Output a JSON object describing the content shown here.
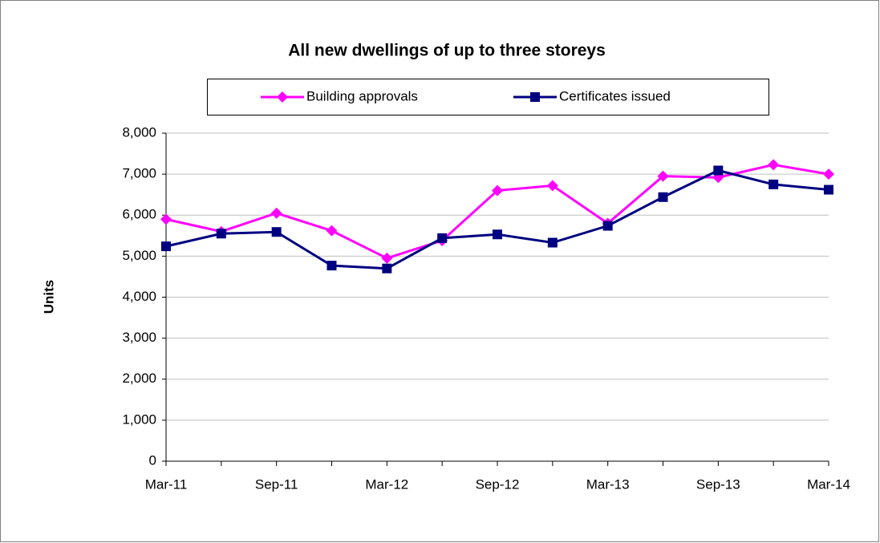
{
  "chart_data": {
    "type": "line",
    "title": "All new dwellings of up to three storeys",
    "ylabel": "Units",
    "categories": [
      "Mar-11",
      null,
      "Sep-11",
      null,
      "Mar-12",
      null,
      "Sep-12",
      null,
      "Mar-13",
      null,
      "Sep-13",
      null,
      "Mar-14"
    ],
    "series": [
      {
        "name": "Building approvals",
        "color": "#ff00ff",
        "marker": "diamond",
        "values": [
          5900,
          5600,
          6050,
          5620,
          4950,
          5380,
          6600,
          6720,
          5800,
          6950,
          6920,
          7230,
          7000
        ]
      },
      {
        "name": "Certificates issued",
        "color": "#000080",
        "marker": "square",
        "values": [
          5240,
          5550,
          5590,
          4770,
          4700,
          5440,
          5530,
          5330,
          5740,
          6440,
          7090,
          6750,
          6620
        ]
      }
    ],
    "ylim": [
      0,
      8000
    ],
    "yticks": [
      0,
      {
        "value": 1000,
        "label": "1,000"
      },
      {
        "value": 2000,
        "label": "2,000"
      },
      {
        "value": 3000,
        "label": "3,000"
      },
      {
        "value": 4000,
        "label": "4,000"
      },
      {
        "value": 5000,
        "label": "5,000"
      },
      {
        "value": 6000,
        "label": "6,000"
      },
      {
        "value": 7000,
        "label": "7,000"
      },
      {
        "value": 8000,
        "label": "8,000"
      }
    ],
    "grid": true,
    "legend": "top"
  }
}
